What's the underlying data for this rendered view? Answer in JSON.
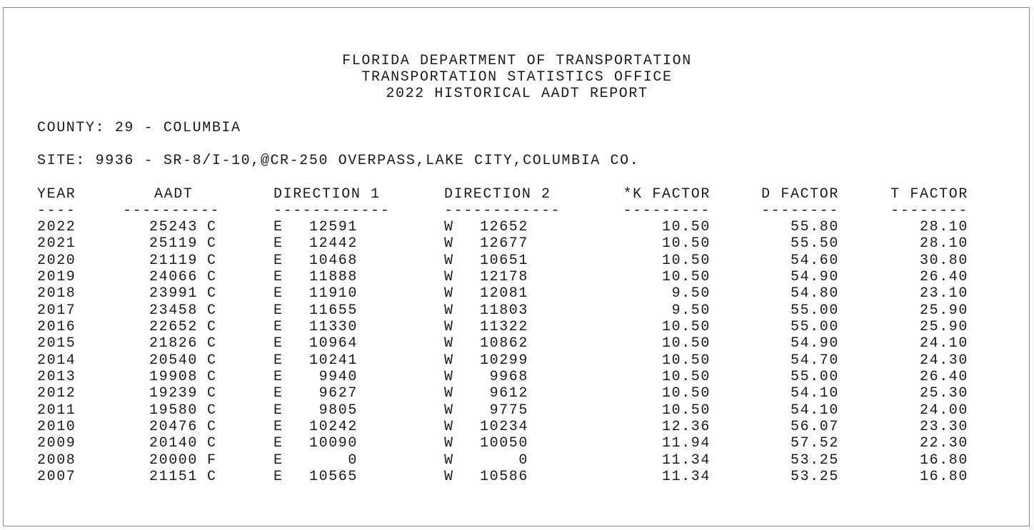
{
  "header": {
    "line1": "FLORIDA DEPARTMENT OF TRANSPORTATION",
    "line2": "TRANSPORTATION STATISTICS OFFICE",
    "line3": "2022 HISTORICAL AADT REPORT"
  },
  "county": "COUNTY: 29 - COLUMBIA",
  "site": "SITE: 9936 - SR-8/I-10,@CR-250 OVERPASS,LAKE CITY,COLUMBIA CO.",
  "columns": {
    "year": "YEAR",
    "aadt": "AADT",
    "dir1": "DIRECTION 1",
    "dir2": "DIRECTION 2",
    "k": "*K FACTOR",
    "d": "D FACTOR",
    "t": "T FACTOR"
  },
  "dashes": {
    "year": "----",
    "aadt": "----------",
    "dir1": "------------",
    "dir2": "------------",
    "k": "---------",
    "d": "--------",
    "t": "--------"
  },
  "rows": [
    {
      "year": "2022",
      "aadt": "25243",
      "flag": "C",
      "dir1": "E",
      "dir1_val": "12591",
      "dir2": "W",
      "dir2_val": "12652",
      "k": "10.50",
      "d": "55.80",
      "t": "28.10"
    },
    {
      "year": "2021",
      "aadt": "25119",
      "flag": "C",
      "dir1": "E",
      "dir1_val": "12442",
      "dir2": "W",
      "dir2_val": "12677",
      "k": "10.50",
      "d": "55.50",
      "t": "28.10"
    },
    {
      "year": "2020",
      "aadt": "21119",
      "flag": "C",
      "dir1": "E",
      "dir1_val": "10468",
      "dir2": "W",
      "dir2_val": "10651",
      "k": "10.50",
      "d": "54.60",
      "t": "30.80"
    },
    {
      "year": "2019",
      "aadt": "24066",
      "flag": "C",
      "dir1": "E",
      "dir1_val": "11888",
      "dir2": "W",
      "dir2_val": "12178",
      "k": "10.50",
      "d": "54.90",
      "t": "26.40"
    },
    {
      "year": "2018",
      "aadt": "23991",
      "flag": "C",
      "dir1": "E",
      "dir1_val": "11910",
      "dir2": "W",
      "dir2_val": "12081",
      "k": "9.50",
      "d": "54.80",
      "t": "23.10"
    },
    {
      "year": "2017",
      "aadt": "23458",
      "flag": "C",
      "dir1": "E",
      "dir1_val": "11655",
      "dir2": "W",
      "dir2_val": "11803",
      "k": "9.50",
      "d": "55.00",
      "t": "25.90"
    },
    {
      "year": "2016",
      "aadt": "22652",
      "flag": "C",
      "dir1": "E",
      "dir1_val": "11330",
      "dir2": "W",
      "dir2_val": "11322",
      "k": "10.50",
      "d": "55.00",
      "t": "25.90"
    },
    {
      "year": "2015",
      "aadt": "21826",
      "flag": "C",
      "dir1": "E",
      "dir1_val": "10964",
      "dir2": "W",
      "dir2_val": "10862",
      "k": "10.50",
      "d": "54.90",
      "t": "24.10"
    },
    {
      "year": "2014",
      "aadt": "20540",
      "flag": "C",
      "dir1": "E",
      "dir1_val": "10241",
      "dir2": "W",
      "dir2_val": "10299",
      "k": "10.50",
      "d": "54.70",
      "t": "24.30"
    },
    {
      "year": "2013",
      "aadt": "19908",
      "flag": "C",
      "dir1": "E",
      "dir1_val": "9940",
      "dir2": "W",
      "dir2_val": "9968",
      "k": "10.50",
      "d": "55.00",
      "t": "26.40"
    },
    {
      "year": "2012",
      "aadt": "19239",
      "flag": "C",
      "dir1": "E",
      "dir1_val": "9627",
      "dir2": "W",
      "dir2_val": "9612",
      "k": "10.50",
      "d": "54.10",
      "t": "25.30"
    },
    {
      "year": "2011",
      "aadt": "19580",
      "flag": "C",
      "dir1": "E",
      "dir1_val": "9805",
      "dir2": "W",
      "dir2_val": "9775",
      "k": "10.50",
      "d": "54.10",
      "t": "24.00"
    },
    {
      "year": "2010",
      "aadt": "20476",
      "flag": "C",
      "dir1": "E",
      "dir1_val": "10242",
      "dir2": "W",
      "dir2_val": "10234",
      "k": "12.36",
      "d": "56.07",
      "t": "23.30"
    },
    {
      "year": "2009",
      "aadt": "20140",
      "flag": "C",
      "dir1": "E",
      "dir1_val": "10090",
      "dir2": "W",
      "dir2_val": "10050",
      "k": "11.94",
      "d": "57.52",
      "t": "22.30"
    },
    {
      "year": "2008",
      "aadt": "20000",
      "flag": "F",
      "dir1": "E",
      "dir1_val": "0",
      "dir2": "W",
      "dir2_val": "0",
      "k": "11.34",
      "d": "53.25",
      "t": "16.80"
    },
    {
      "year": "2007",
      "aadt": "21151",
      "flag": "C",
      "dir1": "E",
      "dir1_val": "10565",
      "dir2": "W",
      "dir2_val": "10586",
      "k": "11.34",
      "d": "53.25",
      "t": "16.80"
    }
  ]
}
